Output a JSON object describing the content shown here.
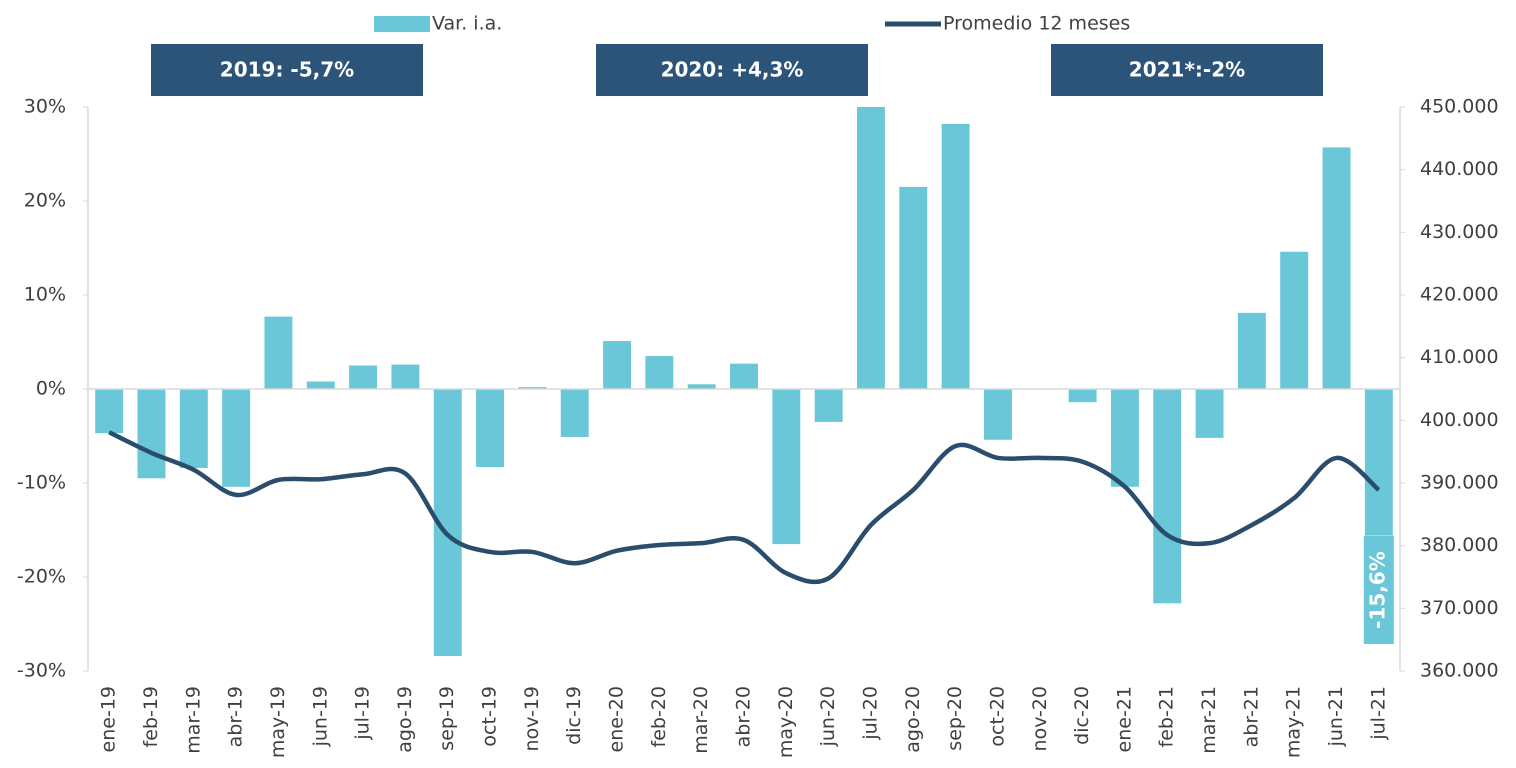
{
  "chart_data": {
    "type": "bar",
    "categories": [
      "ene-19",
      "feb-19",
      "mar-19",
      "abr-19",
      "may-19",
      "jun-19",
      "jul-19",
      "ago-19",
      "sep-19",
      "oct-19",
      "nov-19",
      "dic-19",
      "ene-20",
      "feb-20",
      "mar-20",
      "abr-20",
      "may-20",
      "jun-20",
      "jul-20",
      "ago-20",
      "sep-20",
      "oct-20",
      "nov-20",
      "dic-20",
      "ene-21",
      "feb-21",
      "mar-21",
      "abr-21",
      "may-21",
      "jun-21",
      "jul-21"
    ],
    "series": [
      {
        "name": "Var. i.a.",
        "color": "#6ac7d8",
        "type": "bar",
        "values": [
          -4.7,
          -9.5,
          -8.4,
          -10.4,
          7.7,
          0.8,
          2.5,
          2.6,
          -28.4,
          -8.3,
          0.2,
          -5.1,
          5.1,
          3.5,
          0.5,
          2.7,
          -16.5,
          -3.5,
          30,
          21.5,
          28.2,
          -5.4,
          0,
          -1.4,
          -10.4,
          -22.8,
          -5.2,
          8.1,
          14.6,
          25.7,
          -15.6
        ],
        "value_labels": [
          null,
          null,
          null,
          null,
          null,
          null,
          null,
          null,
          null,
          null,
          null,
          null,
          null,
          null,
          null,
          null,
          null,
          null,
          null,
          null,
          null,
          null,
          null,
          null,
          null,
          null,
          null,
          null,
          null,
          null,
          "-15,6%"
        ]
      },
      {
        "name": "Promedio 12 meses",
        "color": "#2a4d6e",
        "type": "line",
        "axis": "y2",
        "values": [
          398100,
          394800,
          392100,
          388100,
          390500,
          390600,
          391400,
          391500,
          381700,
          379000,
          379000,
          377200,
          379200,
          380100,
          380400,
          380900,
          375600,
          374800,
          383300,
          388900,
          395900,
          394000,
          394000,
          393400,
          389400,
          381700,
          380400,
          383300,
          387600,
          394000,
          388900
        ]
      }
    ],
    "annotations": [
      "2019: -5,7%",
      "2020: +4,3%",
      "2021*:-2%"
    ],
    "ylim": [
      -30,
      30
    ],
    "yticks": [
      {
        "value": -30,
        "label": "-30%"
      },
      {
        "value": -20,
        "label": "-20%"
      },
      {
        "value": -10,
        "label": "-10%"
      },
      {
        "value": 0,
        "label": "0%"
      },
      {
        "value": 10,
        "label": "10%"
      },
      {
        "value": 20,
        "label": "20%"
      },
      {
        "value": 30,
        "label": "30%"
      }
    ],
    "y2lim": [
      360000,
      450000
    ],
    "y2ticks": [
      {
        "value": 360000,
        "label": "360.000"
      },
      {
        "value": 370000,
        "label": "370.000"
      },
      {
        "value": 380000,
        "label": "380.000"
      },
      {
        "value": 390000,
        "label": "390.000"
      },
      {
        "value": 400000,
        "label": "400.000"
      },
      {
        "value": 410000,
        "label": "410.000"
      },
      {
        "value": 420000,
        "label": "420.000"
      },
      {
        "value": 430000,
        "label": "430.000"
      },
      {
        "value": 440000,
        "label": "440.000"
      },
      {
        "value": 450000,
        "label": "450.000"
      }
    ],
    "legend": "top"
  }
}
